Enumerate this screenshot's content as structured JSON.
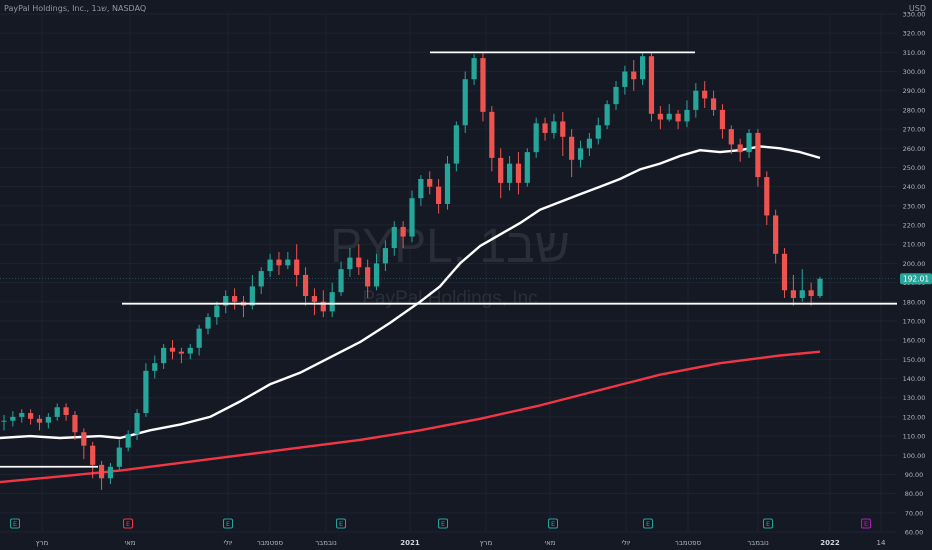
{
  "header": {
    "symbol_line": "PayPal Holdings, Inc., 1שב, NASDAQ",
    "currency": "USD"
  },
  "watermark": {
    "line1": "PYPL, 1שב",
    "line2": "PayPal Holdings, Inc"
  },
  "last_price_label": "192.01",
  "colors": {
    "background": "#151924",
    "up": "#26a69a",
    "down": "#ef5350",
    "ma_fast": "#ffffff",
    "ma_slow": "#f23645",
    "grid": "#1f2330",
    "axis_text": "#b2b5be"
  },
  "chart_data": {
    "type": "candlestick",
    "ylim": [
      60,
      330
    ],
    "y_ticks": [
      60,
      70,
      80,
      90,
      100,
      110,
      120,
      130,
      140,
      150,
      160,
      170,
      180,
      190,
      200,
      210,
      220,
      230,
      240,
      250,
      260,
      270,
      280,
      290,
      300,
      310,
      320,
      330
    ],
    "x_tick_labels": [
      "מרץ",
      "מאי",
      "יולי",
      "ספטמבר",
      "נובמבר",
      "2021",
      "מרץ",
      "מאי",
      "יולי",
      "ספטמבר",
      "נובמבר",
      "2022",
      "14"
    ],
    "event_markers": [
      "E",
      "E",
      "E",
      "E",
      "E",
      "E",
      "E",
      "E",
      "E"
    ],
    "candles": [
      [
        118,
        118,
        113,
        121
      ],
      [
        118,
        120,
        115,
        123
      ],
      [
        120,
        122,
        117,
        124
      ],
      [
        122,
        119,
        116,
        124
      ],
      [
        119,
        117,
        113,
        121
      ],
      [
        117,
        120,
        114,
        122
      ],
      [
        120,
        125,
        118,
        127
      ],
      [
        125,
        121,
        118,
        127
      ],
      [
        121,
        112,
        108,
        123
      ],
      [
        112,
        105,
        98,
        114
      ],
      [
        105,
        95,
        88,
        107
      ],
      [
        95,
        88,
        82,
        97
      ],
      [
        88,
        94,
        85,
        96
      ],
      [
        94,
        104,
        92,
        108
      ],
      [
        104,
        111,
        102,
        113
      ],
      [
        111,
        122,
        108,
        124
      ],
      [
        122,
        144,
        120,
        148
      ],
      [
        144,
        148,
        140,
        152
      ],
      [
        148,
        156,
        145,
        158
      ],
      [
        156,
        154,
        150,
        160
      ],
      [
        154,
        153,
        148,
        156
      ],
      [
        153,
        156,
        150,
        158
      ],
      [
        156,
        166,
        152,
        168
      ],
      [
        166,
        172,
        163,
        174
      ],
      [
        172,
        178,
        168,
        180
      ],
      [
        178,
        183,
        174,
        186
      ],
      [
        183,
        180,
        176,
        187
      ],
      [
        180,
        178,
        172,
        183
      ],
      [
        178,
        188,
        176,
        194
      ],
      [
        188,
        196,
        184,
        198
      ],
      [
        196,
        202,
        193,
        205
      ],
      [
        202,
        199,
        194,
        206
      ],
      [
        199,
        202,
        197,
        206
      ],
      [
        202,
        194,
        188,
        210
      ],
      [
        194,
        183,
        178,
        198
      ],
      [
        183,
        180,
        173,
        187
      ],
      [
        180,
        175,
        172,
        186
      ],
      [
        175,
        185,
        172,
        190
      ],
      [
        185,
        197,
        183,
        201
      ],
      [
        197,
        203,
        193,
        208
      ],
      [
        203,
        198,
        194,
        210
      ],
      [
        198,
        188,
        182,
        202
      ],
      [
        188,
        200,
        186,
        205
      ],
      [
        200,
        208,
        196,
        212
      ],
      [
        208,
        219,
        204,
        222
      ],
      [
        219,
        214,
        208,
        222
      ],
      [
        214,
        234,
        211,
        238
      ],
      [
        234,
        244,
        230,
        246
      ],
      [
        244,
        240,
        236,
        248
      ],
      [
        240,
        231,
        226,
        244
      ],
      [
        231,
        252,
        228,
        256
      ],
      [
        252,
        272,
        248,
        274
      ],
      [
        272,
        296,
        268,
        300
      ],
      [
        296,
        307,
        293,
        309
      ],
      [
        307,
        279,
        274,
        310
      ],
      [
        279,
        255,
        248,
        282
      ],
      [
        255,
        242,
        234,
        260
      ],
      [
        242,
        252,
        238,
        256
      ],
      [
        252,
        242,
        236,
        258
      ],
      [
        242,
        258,
        240,
        260
      ],
      [
        258,
        273,
        255,
        276
      ],
      [
        273,
        268,
        264,
        276
      ],
      [
        268,
        274,
        265,
        278
      ],
      [
        274,
        266,
        256,
        279
      ],
      [
        266,
        254,
        245,
        270
      ],
      [
        254,
        260,
        250,
        264
      ],
      [
        260,
        265,
        256,
        268
      ],
      [
        265,
        272,
        262,
        276
      ],
      [
        272,
        283,
        270,
        285
      ],
      [
        283,
        292,
        280,
        295
      ],
      [
        292,
        300,
        288,
        303
      ],
      [
        300,
        296,
        290,
        306
      ],
      [
        296,
        308,
        293,
        310
      ],
      [
        308,
        278,
        274,
        310
      ],
      [
        278,
        275,
        270,
        282
      ],
      [
        275,
        278,
        274,
        283
      ],
      [
        278,
        274,
        270,
        280
      ],
      [
        274,
        280,
        271,
        285
      ],
      [
        280,
        290,
        276,
        294
      ],
      [
        290,
        286,
        281,
        295
      ],
      [
        286,
        280,
        277,
        290
      ],
      [
        280,
        270,
        265,
        283
      ],
      [
        270,
        262,
        257,
        272
      ],
      [
        262,
        258,
        253,
        265
      ],
      [
        258,
        268,
        255,
        270
      ],
      [
        268,
        245,
        240,
        270
      ],
      [
        245,
        225,
        220,
        248
      ],
      [
        225,
        205,
        200,
        228
      ],
      [
        205,
        186,
        182,
        208
      ],
      [
        186,
        182,
        178,
        194
      ],
      [
        182,
        186,
        180,
        197
      ],
      [
        186,
        183,
        178,
        190
      ],
      [
        183,
        192,
        182,
        193
      ]
    ],
    "ma_fast": [
      [
        0,
        109
      ],
      [
        30,
        110
      ],
      [
        60,
        109
      ],
      [
        100,
        110
      ],
      [
        120,
        109
      ],
      [
        150,
        113
      ],
      [
        180,
        116
      ],
      [
        210,
        120
      ],
      [
        240,
        128
      ],
      [
        270,
        137
      ],
      [
        300,
        143
      ],
      [
        330,
        151
      ],
      [
        360,
        159
      ],
      [
        390,
        169
      ],
      [
        420,
        180
      ],
      [
        440,
        188
      ],
      [
        460,
        200
      ],
      [
        480,
        209
      ],
      [
        500,
        215
      ],
      [
        520,
        221
      ],
      [
        540,
        228
      ],
      [
        560,
        232
      ],
      [
        580,
        236
      ],
      [
        600,
        240
      ],
      [
        620,
        244
      ],
      [
        640,
        249
      ],
      [
        660,
        252
      ],
      [
        680,
        256
      ],
      [
        700,
        259
      ],
      [
        720,
        258
      ],
      [
        740,
        259
      ],
      [
        760,
        261
      ],
      [
        780,
        260
      ],
      [
        800,
        258
      ],
      [
        820,
        255
      ]
    ],
    "ma_slow": [
      [
        0,
        86
      ],
      [
        60,
        89
      ],
      [
        120,
        92
      ],
      [
        180,
        96
      ],
      [
        240,
        100
      ],
      [
        300,
        104
      ],
      [
        360,
        108
      ],
      [
        420,
        113
      ],
      [
        480,
        119
      ],
      [
        540,
        126
      ],
      [
        600,
        134
      ],
      [
        660,
        142
      ],
      [
        720,
        148
      ],
      [
        780,
        152
      ],
      [
        820,
        154
      ]
    ],
    "horizontal_lines": [
      {
        "x0": 430,
        "x1": 695,
        "y": 310
      },
      {
        "x0": 122,
        "x1": 897,
        "y": 179
      },
      {
        "x0": 0,
        "x1": 98,
        "y": 94
      }
    ]
  }
}
